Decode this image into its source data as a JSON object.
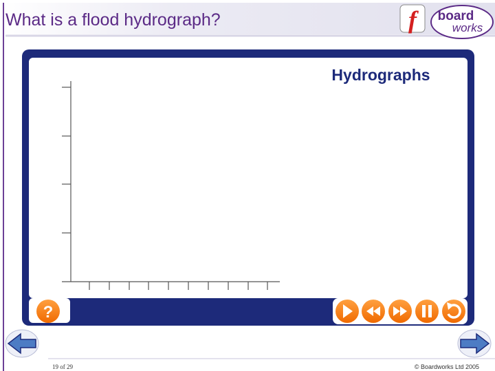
{
  "header": {
    "title": "What is a flood hydrograph?"
  },
  "logo": {
    "flash": "f",
    "line1": "board",
    "line2": "works"
  },
  "panel": {
    "title": "Hydrographs",
    "help": "?"
  },
  "footer": {
    "page": "19 of 29",
    "copyright": "© Boardworks Ltd 2005"
  }
}
